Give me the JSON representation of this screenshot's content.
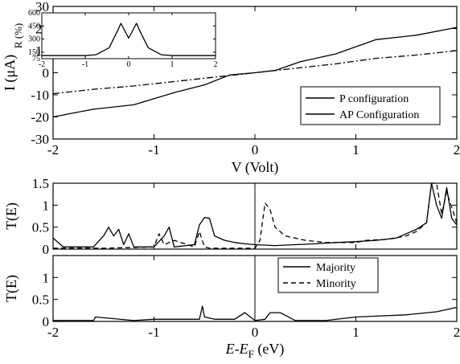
{
  "chart_data": [
    {
      "type": "line",
      "xlabel": "V (Volt)",
      "ylabel": "I (μA)",
      "xlim": [
        -2,
        2
      ],
      "ylim": [
        -30,
        30
      ],
      "xticks": [
        "-2",
        "-1",
        "0",
        "1",
        "2"
      ],
      "yticks": [
        "-30",
        "-20",
        "-10",
        "0",
        "10",
        "20",
        "30"
      ],
      "legend_position": "lower-right",
      "series": [
        {
          "name": "P configuration",
          "style": "solid",
          "x": [
            -2.0,
            -1.6,
            -1.2,
            -0.8,
            -0.5,
            -0.25,
            0.0,
            0.2,
            0.45,
            0.8,
            1.2,
            1.6,
            2.0
          ],
          "y": [
            -20.0,
            -16.5,
            -14.5,
            -9.0,
            -5.5,
            -1.0,
            0.0,
            1.0,
            5.0,
            8.5,
            15.0,
            17.0,
            20.5
          ]
        },
        {
          "name": "AP Configuration",
          "style": "dashdot",
          "x": [
            -2.0,
            -1.6,
            -1.2,
            -0.8,
            -0.4,
            0.0,
            0.4,
            0.8,
            1.2,
            1.6,
            2.0
          ],
          "y": [
            -9.5,
            -7.5,
            -6.0,
            -4.0,
            -2.0,
            0.0,
            2.0,
            4.0,
            6.5,
            8.0,
            10.0
          ]
        }
      ],
      "inset": {
        "ylabel": "R (%)",
        "xlim": [
          -2,
          2
        ],
        "ylim": [
          75,
          600
        ],
        "xticks": [
          "-2",
          "-1",
          "0",
          "1",
          "2"
        ],
        "yticks": [
          "75",
          "150",
          "300",
          "450",
          "600"
        ],
        "series": [
          {
            "style": "solid",
            "x": [
              -2.0,
              -1.0,
              -0.75,
              -0.45,
              -0.25,
              -0.18,
              0.0,
              0.18,
              0.25,
              0.45,
              0.75,
              1.0,
              2.0
            ],
            "y": [
              110,
              110,
              120,
              200,
              400,
              480,
              310,
              480,
              400,
              200,
              120,
              110,
              110
            ]
          }
        ]
      }
    },
    {
      "type": "line",
      "ylabel": "T(E)",
      "xlim": [
        -2,
        2
      ],
      "ylim": [
        0,
        1.5
      ],
      "yticks": [
        "0",
        "0.5",
        "1",
        "1.5"
      ],
      "series": [
        {
          "name": "Majority",
          "style": "solid",
          "x": [
            -2.0,
            -1.95,
            -1.9,
            -1.8,
            -1.6,
            -1.5,
            -1.45,
            -1.4,
            -1.35,
            -1.3,
            -1.25,
            -1.2,
            -1.1,
            -1.0,
            -0.9,
            -0.85,
            -0.8,
            -0.6,
            -0.55,
            -0.5,
            -0.45,
            -0.4,
            -0.3,
            -0.2,
            -0.1,
            0.0,
            0.2,
            0.4,
            0.6,
            0.8,
            1.0,
            1.2,
            1.4,
            1.6,
            1.7,
            1.75,
            1.8,
            1.85,
            1.9,
            1.95,
            2.0
          ],
          "y": [
            0.25,
            0.15,
            0.05,
            0.05,
            0.05,
            0.3,
            0.5,
            0.3,
            0.45,
            0.1,
            0.35,
            0.05,
            0.05,
            0.05,
            0.3,
            0.5,
            0.05,
            0.1,
            0.55,
            0.72,
            0.7,
            0.3,
            0.2,
            0.15,
            0.12,
            0.1,
            0.08,
            0.1,
            0.12,
            0.15,
            0.17,
            0.2,
            0.25,
            0.45,
            0.6,
            1.5,
            1.0,
            0.7,
            1.4,
            0.7,
            0.55
          ]
        },
        {
          "name": "Minority",
          "style": "dashed",
          "x": [
            -2.0,
            -1.5,
            -1.0,
            -0.95,
            -0.9,
            -0.8,
            -0.6,
            -0.55,
            -0.5,
            -0.45,
            -0.4,
            -0.1,
            0.0,
            0.05,
            0.1,
            0.15,
            0.2,
            0.3,
            0.5,
            0.7,
            1.0,
            1.1,
            1.3,
            1.5,
            1.6,
            1.7,
            1.75,
            1.8,
            1.85,
            1.9,
            2.0
          ],
          "y": [
            0.02,
            0.02,
            0.05,
            0.35,
            0.1,
            0.2,
            0.05,
            0.4,
            0.05,
            0.02,
            0.02,
            0.02,
            0.02,
            0.2,
            1.05,
            0.9,
            0.5,
            0.3,
            0.2,
            0.15,
            0.15,
            0.2,
            0.22,
            0.3,
            0.4,
            0.6,
            1.5,
            1.5,
            0.8,
            1.3,
            0.6
          ]
        }
      ]
    },
    {
      "type": "line",
      "ylabel": "T(E)",
      "xlabel": "E-E_F (eV)",
      "xlim": [
        -2,
        2
      ],
      "ylim": [
        0,
        1.5
      ],
      "xticks": [
        "-2",
        "-1",
        "0",
        "1",
        "2"
      ],
      "yticks": [
        "0",
        "0.5",
        "1"
      ],
      "legend_position": "top-center",
      "legend": [
        "Majority",
        "Minority"
      ],
      "series": [
        {
          "name": "Majority",
          "style": "solid",
          "x": [
            -2.0,
            -1.6,
            -1.58,
            -1.2,
            -1.0,
            -0.55,
            -0.52,
            -0.5,
            -0.4,
            -0.2,
            -0.1,
            0.0,
            0.1,
            0.15,
            0.25,
            0.4,
            0.7,
            1.0,
            1.2,
            1.5,
            1.8,
            2.0
          ],
          "y": [
            0.02,
            0.02,
            0.1,
            0.02,
            0.05,
            0.05,
            0.35,
            0.1,
            0.05,
            0.05,
            0.2,
            0.02,
            0.05,
            0.2,
            0.2,
            0.02,
            0.02,
            0.1,
            0.12,
            0.15,
            0.22,
            0.32
          ]
        }
      ]
    }
  ]
}
